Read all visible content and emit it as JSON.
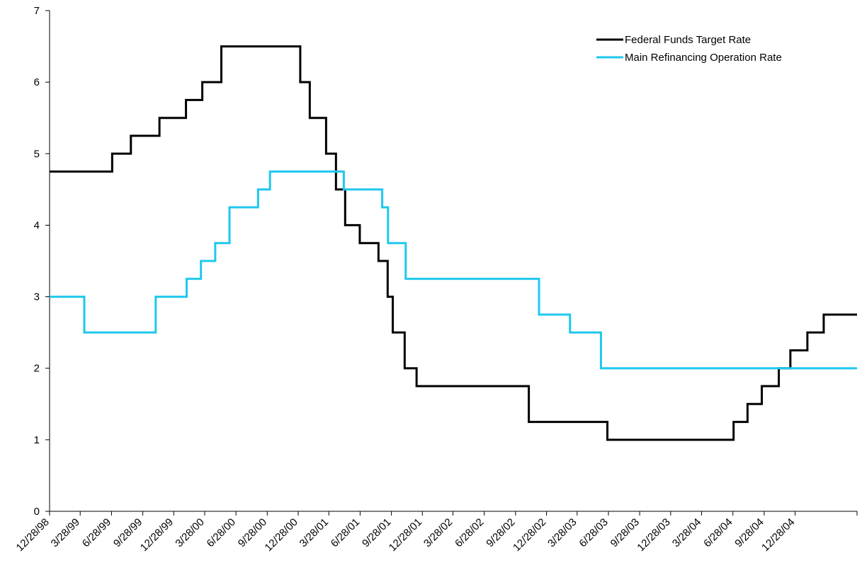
{
  "chart_data": {
    "type": "line",
    "title": "",
    "xlabel": "",
    "ylabel": "",
    "ylim": [
      0,
      7
    ],
    "yticks": [
      "0",
      "1",
      "2",
      "3",
      "4",
      "5",
      "6",
      "7"
    ],
    "xlim": [
      "1998-12-28",
      "2005-06-28"
    ],
    "xticks": [
      "12/28/98",
      "3/28/99",
      "6/28/99",
      "9/28/99",
      "12/28/99",
      "3/28/00",
      "6/28/00",
      "9/28/00",
      "12/28/00",
      "3/28/01",
      "6/28/01",
      "9/28/01",
      "12/28/01",
      "3/28/02",
      "6/28/02",
      "9/28/02",
      "12/28/02",
      "3/28/03",
      "6/28/03",
      "9/28/03",
      "12/28/03",
      "3/28/04",
      "6/28/04",
      "9/28/04",
      "12/28/04"
    ],
    "grid": false,
    "legend": "top-right",
    "series": [
      {
        "name": "Federal Funds Target Rate",
        "color": "#000000",
        "step": true,
        "points": [
          [
            "1998-12-28",
            4.75
          ],
          [
            "1999-06-30",
            5.0
          ],
          [
            "1999-08-24",
            5.25
          ],
          [
            "1999-11-16",
            5.5
          ],
          [
            "2000-02-02",
            5.75
          ],
          [
            "2000-03-21",
            6.0
          ],
          [
            "2000-05-16",
            6.5
          ],
          [
            "2001-01-03",
            6.0
          ],
          [
            "2001-01-31",
            5.5
          ],
          [
            "2001-03-20",
            5.0
          ],
          [
            "2001-04-18",
            4.5
          ],
          [
            "2001-05-15",
            4.0
          ],
          [
            "2001-06-27",
            3.75
          ],
          [
            "2001-08-21",
            3.5
          ],
          [
            "2001-09-17",
            3.0
          ],
          [
            "2001-10-02",
            2.5
          ],
          [
            "2001-11-06",
            2.0
          ],
          [
            "2001-12-11",
            1.75
          ],
          [
            "2002-11-06",
            1.25
          ],
          [
            "2003-06-25",
            1.0
          ],
          [
            "2004-06-30",
            1.25
          ],
          [
            "2004-08-10",
            1.5
          ],
          [
            "2004-09-21",
            1.75
          ],
          [
            "2004-11-10",
            2.0
          ],
          [
            "2004-12-14",
            2.25
          ],
          [
            "2005-02-02",
            2.5
          ],
          [
            "2005-03-22",
            2.75
          ],
          [
            "2005-06-28",
            2.75
          ]
        ]
      },
      {
        "name": "Main Refinancing Operation Rate",
        "color": "#1ec8ee",
        "step": true,
        "points": [
          [
            "1998-12-28",
            3.0
          ],
          [
            "1999-04-09",
            2.5
          ],
          [
            "1999-11-05",
            3.0
          ],
          [
            "2000-02-04",
            3.25
          ],
          [
            "2000-03-17",
            3.5
          ],
          [
            "2000-04-28",
            3.75
          ],
          [
            "2000-06-09",
            4.25
          ],
          [
            "2000-09-01",
            4.5
          ],
          [
            "2000-10-06",
            4.75
          ],
          [
            "2001-05-11",
            4.5
          ],
          [
            "2001-09-01",
            4.25
          ],
          [
            "2001-09-18",
            3.75
          ],
          [
            "2001-11-09",
            3.25
          ],
          [
            "2002-12-06",
            2.75
          ],
          [
            "2003-03-07",
            2.5
          ],
          [
            "2003-06-06",
            2.0
          ],
          [
            "2005-06-28",
            2.0
          ]
        ]
      }
    ]
  }
}
